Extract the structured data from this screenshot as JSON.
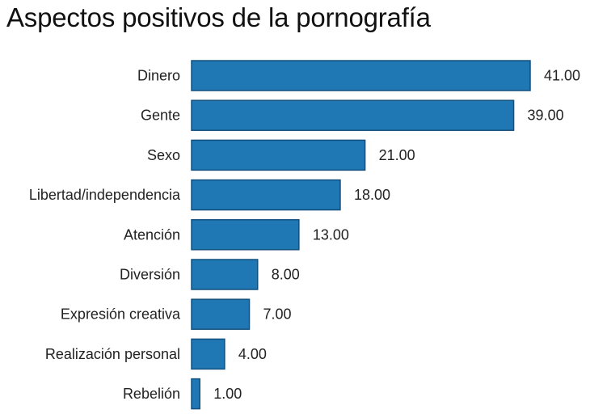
{
  "title": "Aspectos positivos de la pornografía",
  "colors": {
    "bar_fill": "#1f77b4",
    "bar_stroke": "#14507e"
  },
  "chart_data": {
    "type": "bar",
    "orientation": "horizontal",
    "title": "Aspectos positivos de la pornografía",
    "categories": [
      "Dinero",
      "Gente",
      "Sexo",
      "Libertad/independencia",
      "Atención",
      "Diversión",
      "Expresión creativa",
      "Realización personal",
      "Rebelión"
    ],
    "values": [
      41,
      39,
      21,
      18,
      13,
      8,
      7,
      4,
      1
    ],
    "value_labels": [
      "41.00",
      "39.00",
      "21.00",
      "18.00",
      "13.00",
      "8.00",
      "7.00",
      "4.00",
      "1.00"
    ],
    "xlabel": "",
    "ylabel": "",
    "xlim": [
      0,
      41
    ],
    "grid": false,
    "legend": "none"
  }
}
